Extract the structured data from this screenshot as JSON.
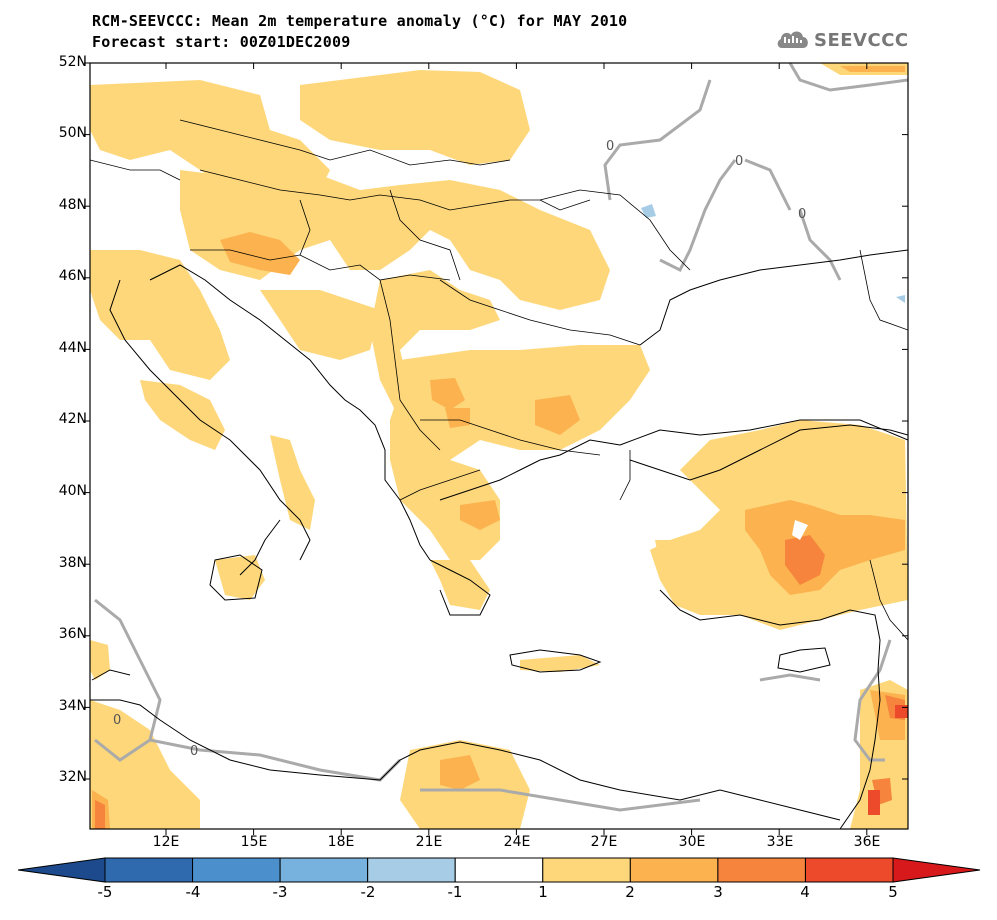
{
  "title": {
    "line1": "RCM-SEEVCCC: Mean 2m temperature anomaly (°C) for MAY 2010",
    "line2": "Forecast start: 00Z01DEC2009"
  },
  "logo": {
    "text": "SEEVCCC",
    "icon": "cloud-logo-icon"
  },
  "map": {
    "lat_labels": [
      "52N",
      "50N",
      "48N",
      "46N",
      "44N",
      "42N",
      "40N",
      "38N",
      "36N",
      "34N",
      "32N"
    ],
    "lon_labels": [
      "12E",
      "15E",
      "18E",
      "21E",
      "24E",
      "27E",
      "30E",
      "33E",
      "36E"
    ],
    "lat_range": [
      30.6,
      52
    ],
    "lon_range": [
      9,
      37
    ]
  },
  "colorbar": {
    "labels": [
      "-5",
      "-4",
      "-3",
      "-2",
      "-1",
      "1",
      "2",
      "3",
      "4",
      "5"
    ],
    "colors": [
      "#1c4a8c",
      "#2f6aaf",
      "#4b8fcc",
      "#77b1de",
      "#a6cce6",
      "#ffffff",
      "#fdd77a",
      "#fbb24f",
      "#f6843c",
      "#ec4a2a",
      "#d7191c"
    ]
  },
  "contour_labels": [
    "0",
    "0",
    "0",
    "0",
    "0"
  ],
  "anomaly_colors": {
    "light": "#fdd77a",
    "medium": "#fbb24f",
    "strong": "#f6843c",
    "red": "#ec4a2a",
    "negative": "#a6cce6"
  }
}
